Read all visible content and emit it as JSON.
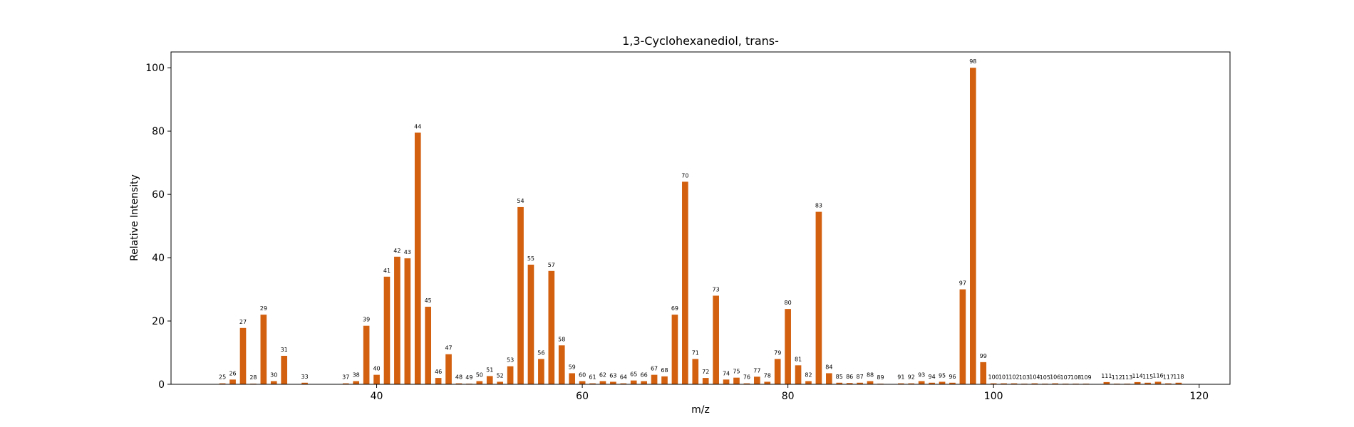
{
  "chart_data": {
    "type": "bar",
    "title": "1,3-Cyclohexanediol, trans-",
    "xlabel": "m/z",
    "ylabel": "Relative Intensity",
    "xlim": [
      20,
      123
    ],
    "ylim": [
      0,
      105
    ],
    "xticks": [
      40,
      60,
      80,
      100,
      120
    ],
    "yticks": [
      0,
      20,
      40,
      60,
      80,
      100
    ],
    "grid": false,
    "legend": "none",
    "bar_color": "#d2600f",
    "x": [
      25,
      26,
      27,
      28,
      29,
      30,
      31,
      33,
      37,
      38,
      39,
      40,
      41,
      42,
      43,
      44,
      45,
      46,
      47,
      48,
      49,
      50,
      51,
      52,
      53,
      54,
      55,
      56,
      57,
      58,
      59,
      60,
      61,
      62,
      63,
      64,
      65,
      66,
      67,
      68,
      69,
      70,
      71,
      72,
      73,
      74,
      75,
      76,
      77,
      78,
      79,
      80,
      81,
      82,
      83,
      84,
      85,
      86,
      87,
      88,
      89,
      91,
      92,
      93,
      94,
      95,
      96,
      97,
      98,
      99,
      100,
      101,
      102,
      103,
      104,
      105,
      106,
      107,
      108,
      109,
      111,
      112,
      113,
      114,
      115,
      116,
      117,
      118
    ],
    "values": [
      0.3,
      1.5,
      17.8,
      0.2,
      22.0,
      1.0,
      9.0,
      0.5,
      0.3,
      1.0,
      18.5,
      3.0,
      34.0,
      40.3,
      39.8,
      79.5,
      24.5,
      2.0,
      9.5,
      0.3,
      0.2,
      1.0,
      2.6,
      0.8,
      5.7,
      56.0,
      37.8,
      8.0,
      35.8,
      12.3,
      3.5,
      1.0,
      0.3,
      1.0,
      0.8,
      0.3,
      1.2,
      1.0,
      3.0,
      2.5,
      22.0,
      64.0,
      8.0,
      2.0,
      28.0,
      1.5,
      2.1,
      0.3,
      2.4,
      0.8,
      8.0,
      23.8,
      6.0,
      1.0,
      54.5,
      3.5,
      0.5,
      0.4,
      0.5,
      1.0,
      0.2,
      0.3,
      0.3,
      1.0,
      0.5,
      0.8,
      0.5,
      30.0,
      100.0,
      7.0,
      0.3,
      0.3,
      0.3,
      0.2,
      0.3,
      0.2,
      0.3,
      0.2,
      0.2,
      0.2,
      0.7,
      0.2,
      0.2,
      0.7,
      0.5,
      0.8,
      0.3,
      0.5
    ]
  }
}
